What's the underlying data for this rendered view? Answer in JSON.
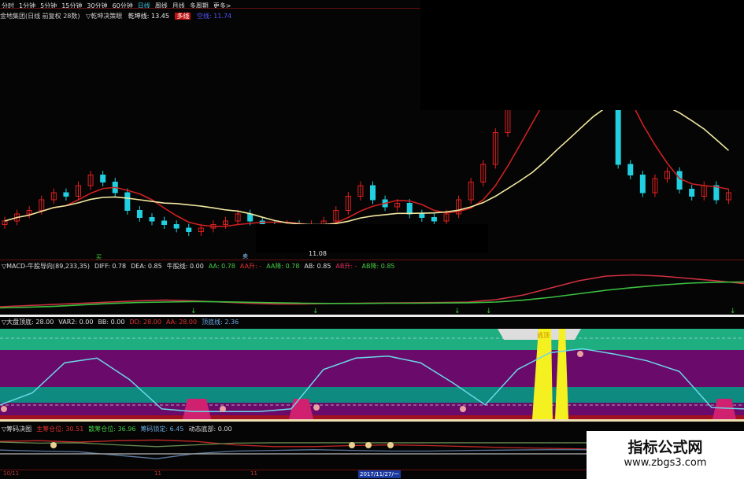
{
  "menu": [
    "分时",
    "1分钟",
    "5分钟",
    "15分钟",
    "30分钟",
    "60分钟",
    "日线",
    "周线",
    "月线",
    "多周期",
    "更多>"
  ],
  "menu_active": 6,
  "title": {
    "stock": "金地集团(日线 前复权 28数)",
    "indicator": "▽乾坤决策眼",
    "line_label": "乾坤线: 13.45",
    "red_tag": "多线",
    "blue_tag": "空线: 11.74"
  },
  "main_markers": {
    "low_price": "11.08",
    "mark1": "买",
    "mark2": "卖"
  },
  "macd": {
    "name": "▽MACD-牛股导向(89,233,35)",
    "items": [
      {
        "t": "DIFF: 0.78",
        "c": "#ddd"
      },
      {
        "t": "DEA: 0.85",
        "c": "#ddd"
      },
      {
        "t": "牛股线: 0.00",
        "c": "#ddd"
      },
      {
        "t": "AA: 0.78",
        "c": "#44cc44"
      },
      {
        "t": "AA升: -",
        "c": "#e03030"
      },
      {
        "t": "AA降: 0.78",
        "c": "#44cc44"
      },
      {
        "t": "AB: 0.85",
        "c": "#ddd"
      },
      {
        "t": "AB升: -",
        "c": "#e03060"
      },
      {
        "t": "AB降: 0.85",
        "c": "#44cc44"
      }
    ]
  },
  "topbottom": {
    "name": "▽大盘顶底: 28.00",
    "items": [
      {
        "t": "VAR2: 0.00",
        "c": "#ddd"
      },
      {
        "t": "BB: 0.00",
        "c": "#ddd"
      },
      {
        "t": "DD: 28.00",
        "c": "#e03030"
      },
      {
        "t": "AA: 28.00",
        "c": "#e03030"
      },
      {
        "t": "顶底线: 2.36",
        "c": "#6aa8e0"
      }
    ],
    "escape_label": "逃顶"
  },
  "chips": {
    "name": "▽筹码决图",
    "items": [
      {
        "t": "主筹仓位: 30.51",
        "c": "#e03030"
      },
      {
        "t": "散筹仓位: 36.96",
        "c": "#44cc44"
      },
      {
        "t": "筹码锁定: 6.45",
        "c": "#6aa8e0"
      },
      {
        "t": "动态底部: 0.00",
        "c": "#ddd"
      }
    ]
  },
  "date_axis": [
    "10/11",
    "11",
    "11",
    "2017/11/27/一"
  ],
  "watermark": {
    "title": "指标公式网",
    "url": "www.zbgs3.com"
  },
  "colors": {
    "up": "#e02020",
    "down": "#20d0e0",
    "ma_fast": "#d02020",
    "ma_slow": "#f0e8a0",
    "band_green": "#1fae80",
    "band_purple": "#6a0a6a",
    "band_teal": "#0f8a80",
    "escape": "#f5f020"
  },
  "chart_data": {
    "type": "candlestick",
    "closes": [
      11.7,
      11.9,
      12.0,
      12.3,
      12.5,
      12.4,
      12.7,
      13.0,
      12.8,
      12.5,
      12.0,
      11.8,
      11.7,
      11.6,
      11.5,
      11.4,
      11.5,
      11.6,
      11.7,
      11.9,
      11.7,
      11.6,
      11.5,
      11.6,
      11.5,
      11.6,
      11.7,
      12.0,
      12.4,
      12.7,
      12.3,
      12.1,
      12.2,
      11.9,
      11.8,
      11.7,
      11.9,
      12.3,
      12.8,
      13.3,
      14.2,
      15.0,
      15.5,
      16.0,
      16.5,
      16.8,
      16.6,
      16.4,
      16.2,
      15.2,
      13.3,
      13.0,
      12.5,
      12.9,
      13.1,
      12.6,
      12.4,
      12.7,
      12.3,
      12.5
    ],
    "macd_diff": [
      -0.2,
      -0.15,
      -0.1,
      -0.05,
      0.0,
      0.05,
      0.08,
      0.05,
      0.0,
      -0.05,
      -0.08,
      -0.08,
      -0.06,
      -0.05,
      -0.04,
      -0.03,
      -0.02,
      0,
      0.1,
      0.3,
      0.6,
      0.9,
      1.1,
      1.15,
      1.1,
      1.0,
      0.9,
      0.78
    ],
    "macd_dea": [
      -0.25,
      -0.22,
      -0.18,
      -0.12,
      -0.06,
      -0.02,
      0.0,
      0.02,
      0.01,
      -0.01,
      -0.03,
      -0.05,
      -0.06,
      -0.06,
      -0.05,
      -0.05,
      -0.04,
      -0.03,
      0,
      0.08,
      0.2,
      0.35,
      0.5,
      0.62,
      0.72,
      0.8,
      0.84,
      0.85
    ],
    "topbottom_line": [
      12,
      30,
      75,
      82,
      50,
      6,
      2,
      2,
      2,
      6,
      65,
      82,
      85,
      75,
      45,
      12,
      65,
      90,
      96,
      88,
      78,
      62,
      8,
      6
    ],
    "chip_main": [
      70,
      72,
      68,
      72,
      74,
      70,
      60,
      55,
      55,
      58,
      60,
      58,
      55,
      52,
      50,
      48,
      40,
      70,
      72,
      70
    ],
    "chip_retail": [
      68,
      65,
      66,
      60,
      55,
      60,
      65,
      66,
      66,
      66,
      66,
      66,
      66,
      66,
      66,
      66,
      66,
      64,
      62,
      62
    ],
    "chip_lock": [
      45,
      42,
      40,
      30,
      20,
      35,
      42,
      44,
      46,
      44,
      42,
      42,
      44,
      45,
      46,
      46,
      50,
      38,
      35,
      28
    ]
  }
}
